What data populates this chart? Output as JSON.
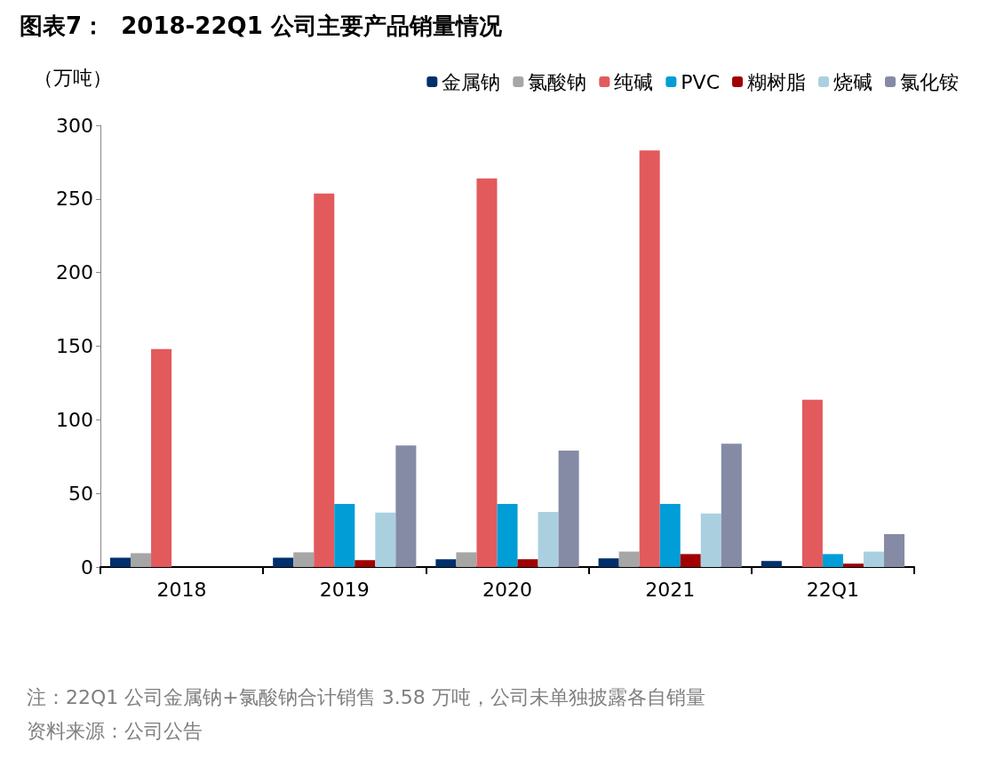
{
  "chart_data": {
    "type": "bar",
    "title": "图表7：  2018-22Q1 公司主要产品销量情况",
    "ylabel": "（万吨）",
    "categories": [
      "2018",
      "2019",
      "2020",
      "2021",
      "22Q1"
    ],
    "series": [
      {
        "name": "金属钠",
        "color": "#00306b",
        "values": [
          6.4,
          6.4,
          5.3,
          5.9,
          4.1
        ]
      },
      {
        "name": "氯酸钠",
        "color": "#a6a6a6",
        "values": [
          9.4,
          10,
          10,
          10.5,
          null
        ]
      },
      {
        "name": "纯碱",
        "color": "#e35a5c",
        "values": [
          148,
          253.6,
          264,
          283,
          113.6
        ]
      },
      {
        "name": "PVC",
        "color": "#009dd6",
        "values": [
          null,
          42.8,
          42.8,
          42.8,
          8.8
        ]
      },
      {
        "name": "糊树脂",
        "color": "#a00000",
        "values": [
          null,
          4.7,
          5.3,
          8.8,
          2.3
        ]
      },
      {
        "name": "烧碱",
        "color": "#aad0e0",
        "values": [
          null,
          36.9,
          37.5,
          36.3,
          10.5
        ]
      },
      {
        "name": "氯化铵",
        "color": "#858ba5",
        "values": [
          null,
          82.6,
          79,
          83.8,
          22.3
        ]
      }
    ],
    "ylim": [
      0,
      300
    ],
    "yticks": [
      0,
      50,
      100,
      150,
      200,
      250,
      300
    ],
    "grid": false,
    "legend": "top right",
    "annotations": [
      "注：22Q1 公司金属钠+氯酸钠合计销售 3.58 万吨，公司未单独披露各自销量",
      "资料来源：公司公告"
    ]
  }
}
